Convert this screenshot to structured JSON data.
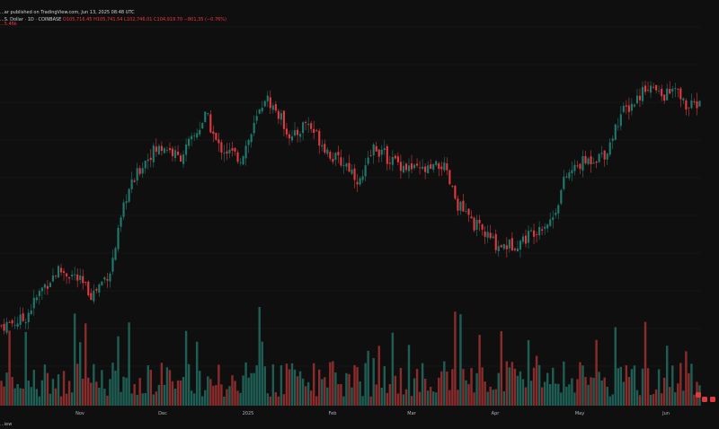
{
  "header": {
    "publisher": "...ar published on TradingView.com, Jun 13, 2025 08:48 UTC",
    "symbol": "...S. Dollar · 1D · COINBASE",
    "ohlc": "O105,716.45 H105,741.54 L102,746.01 C104,919.70 −801,35 (−0.76%)",
    "volume": "...5.46k"
  },
  "footer": {
    "view_label": "...iew"
  },
  "colors": {
    "up": "#1f7a6e",
    "down": "#e0393f",
    "background": "#0f0f0f",
    "vol_up": "#1e5e55",
    "vol_down": "#8a2c2c"
  },
  "chart_data": {
    "type": "candlestick",
    "x_tick_labels": [
      "Nov",
      "Dec",
      "2025",
      "Feb",
      "Mar",
      "Apr",
      "May",
      "Jun"
    ],
    "trend_points": [
      [
        0,
        69
      ],
      [
        10,
        70
      ],
      [
        18,
        75
      ],
      [
        25,
        78
      ],
      [
        32,
        77
      ],
      [
        40,
        74
      ],
      [
        48,
        78
      ],
      [
        55,
        90
      ],
      [
        62,
        95
      ],
      [
        66,
        97
      ],
      [
        72,
        98
      ],
      [
        78,
        96
      ],
      [
        84,
        99
      ],
      [
        90,
        103
      ],
      [
        95,
        98
      ],
      [
        100,
        97
      ],
      [
        105,
        96
      ],
      [
        110,
        100
      ],
      [
        116,
        106
      ],
      [
        122,
        103
      ],
      [
        128,
        99
      ],
      [
        134,
        102
      ],
      [
        140,
        99
      ],
      [
        146,
        96
      ],
      [
        152,
        95
      ],
      [
        158,
        92
      ],
      [
        164,
        98
      ],
      [
        170,
        96
      ],
      [
        176,
        95
      ],
      [
        182,
        94
      ],
      [
        188,
        94
      ],
      [
        194,
        95
      ],
      [
        200,
        89
      ],
      [
        206,
        86
      ],
      [
        212,
        84
      ],
      [
        218,
        82
      ],
      [
        224,
        82
      ],
      [
        230,
        83
      ],
      [
        236,
        85
      ],
      [
        242,
        86
      ],
      [
        248,
        93
      ],
      [
        254,
        95
      ],
      [
        260,
        96
      ],
      [
        266,
        97
      ],
      [
        272,
        103
      ],
      [
        278,
        105
      ],
      [
        284,
        108
      ],
      [
        290,
        106
      ],
      [
        296,
        107
      ],
      [
        302,
        104
      ],
      [
        307,
        105
      ]
    ],
    "y_range": [
      60,
      115
    ],
    "volume_scale": [
      0,
      100
    ]
  }
}
